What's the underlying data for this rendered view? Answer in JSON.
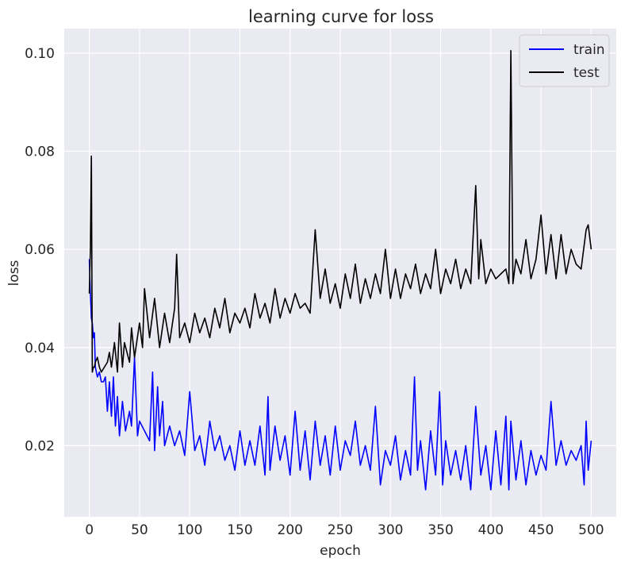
{
  "chart_data": {
    "type": "line",
    "title": "learning curve for loss",
    "xlabel": "epoch",
    "ylabel": "loss",
    "xlim": [
      -25,
      525
    ],
    "ylim": [
      0.0055,
      0.105
    ],
    "xticks": [
      0,
      50,
      100,
      150,
      200,
      250,
      300,
      350,
      400,
      450,
      500
    ],
    "yticks": [
      0.02,
      0.04,
      0.06,
      0.08,
      0.1
    ],
    "ytick_labels": [
      "0.02",
      "0.04",
      "0.06",
      "0.08",
      "0.10"
    ],
    "grid": true,
    "legend_position": "top-right",
    "background": "#eaeaf2",
    "series": [
      {
        "name": "train",
        "color": "#0000ff",
        "x": [
          0,
          1,
          2,
          3,
          4,
          5,
          6,
          8,
          10,
          12,
          14,
          16,
          18,
          20,
          22,
          24,
          26,
          28,
          30,
          33,
          36,
          40,
          42,
          45,
          48,
          50,
          55,
          60,
          63,
          65,
          68,
          70,
          73,
          75,
          80,
          85,
          90,
          95,
          100,
          105,
          110,
          115,
          120,
          125,
          130,
          135,
          140,
          145,
          150,
          155,
          160,
          165,
          170,
          175,
          178,
          180,
          185,
          190,
          195,
          200,
          205,
          210,
          215,
          220,
          225,
          230,
          235,
          240,
          245,
          250,
          255,
          260,
          265,
          270,
          275,
          280,
          285,
          290,
          295,
          300,
          305,
          310,
          315,
          320,
          324,
          327,
          330,
          335,
          340,
          345,
          349,
          352,
          355,
          360,
          365,
          370,
          375,
          380,
          385,
          390,
          395,
          400,
          405,
          410,
          415,
          418,
          420,
          425,
          430,
          435,
          440,
          445,
          450,
          455,
          460,
          465,
          470,
          475,
          480,
          485,
          490,
          493,
          495,
          497,
          500
        ],
        "values": [
          0.058,
          0.051,
          0.046,
          0.045,
          0.042,
          0.043,
          0.036,
          0.034,
          0.035,
          0.033,
          0.033,
          0.034,
          0.027,
          0.033,
          0.026,
          0.034,
          0.024,
          0.03,
          0.022,
          0.029,
          0.023,
          0.027,
          0.024,
          0.038,
          0.022,
          0.025,
          0.023,
          0.021,
          0.035,
          0.019,
          0.032,
          0.022,
          0.029,
          0.02,
          0.024,
          0.02,
          0.023,
          0.018,
          0.031,
          0.019,
          0.022,
          0.016,
          0.025,
          0.019,
          0.022,
          0.017,
          0.02,
          0.015,
          0.023,
          0.016,
          0.021,
          0.016,
          0.024,
          0.014,
          0.03,
          0.015,
          0.024,
          0.017,
          0.022,
          0.014,
          0.027,
          0.015,
          0.023,
          0.013,
          0.025,
          0.016,
          0.022,
          0.014,
          0.024,
          0.015,
          0.021,
          0.018,
          0.025,
          0.016,
          0.02,
          0.015,
          0.028,
          0.012,
          0.019,
          0.016,
          0.022,
          0.013,
          0.019,
          0.014,
          0.034,
          0.015,
          0.021,
          0.011,
          0.023,
          0.014,
          0.031,
          0.012,
          0.021,
          0.014,
          0.019,
          0.013,
          0.02,
          0.011,
          0.028,
          0.014,
          0.02,
          0.011,
          0.023,
          0.012,
          0.026,
          0.011,
          0.025,
          0.013,
          0.021,
          0.012,
          0.019,
          0.014,
          0.018,
          0.015,
          0.029,
          0.016,
          0.021,
          0.016,
          0.019,
          0.017,
          0.02,
          0.012,
          0.025,
          0.015,
          0.021
        ]
      },
      {
        "name": "test",
        "color": "#000000",
        "x": [
          0,
          1,
          2,
          3,
          4,
          5,
          6,
          8,
          10,
          12,
          15,
          18,
          20,
          22,
          25,
          28,
          30,
          33,
          35,
          40,
          42,
          45,
          50,
          53,
          55,
          60,
          65,
          70,
          75,
          80,
          85,
          87,
          90,
          95,
          100,
          105,
          110,
          115,
          120,
          125,
          130,
          135,
          140,
          145,
          150,
          155,
          160,
          165,
          170,
          175,
          180,
          185,
          190,
          195,
          200,
          205,
          210,
          215,
          220,
          225,
          230,
          235,
          240,
          245,
          250,
          255,
          260,
          265,
          270,
          275,
          280,
          285,
          290,
          295,
          300,
          305,
          310,
          315,
          320,
          325,
          330,
          335,
          340,
          345,
          350,
          355,
          360,
          365,
          370,
          375,
          380,
          385,
          388,
          390,
          395,
          400,
          405,
          410,
          415,
          418,
          420,
          422,
          425,
          430,
          435,
          440,
          445,
          450,
          455,
          460,
          465,
          470,
          475,
          480,
          485,
          490,
          495,
          497,
          500
        ],
        "values": [
          0.051,
          0.06,
          0.079,
          0.035,
          0.036,
          0.036,
          0.037,
          0.038,
          0.036,
          0.035,
          0.036,
          0.037,
          0.039,
          0.036,
          0.041,
          0.035,
          0.045,
          0.036,
          0.041,
          0.037,
          0.044,
          0.038,
          0.045,
          0.04,
          0.052,
          0.042,
          0.05,
          0.04,
          0.047,
          0.041,
          0.048,
          0.059,
          0.042,
          0.045,
          0.041,
          0.047,
          0.043,
          0.046,
          0.042,
          0.048,
          0.044,
          0.05,
          0.043,
          0.047,
          0.045,
          0.048,
          0.044,
          0.051,
          0.046,
          0.049,
          0.045,
          0.052,
          0.046,
          0.05,
          0.047,
          0.051,
          0.048,
          0.049,
          0.047,
          0.064,
          0.05,
          0.056,
          0.049,
          0.053,
          0.048,
          0.055,
          0.05,
          0.057,
          0.049,
          0.054,
          0.05,
          0.055,
          0.051,
          0.06,
          0.05,
          0.056,
          0.05,
          0.055,
          0.052,
          0.057,
          0.051,
          0.055,
          0.052,
          0.06,
          0.051,
          0.056,
          0.053,
          0.058,
          0.052,
          0.056,
          0.053,
          0.073,
          0.054,
          0.062,
          0.053,
          0.056,
          0.054,
          0.055,
          0.056,
          0.053,
          0.1005,
          0.053,
          0.058,
          0.055,
          0.062,
          0.054,
          0.058,
          0.067,
          0.055,
          0.063,
          0.054,
          0.063,
          0.055,
          0.06,
          0.057,
          0.056,
          0.064,
          0.065,
          0.06
        ]
      }
    ]
  }
}
